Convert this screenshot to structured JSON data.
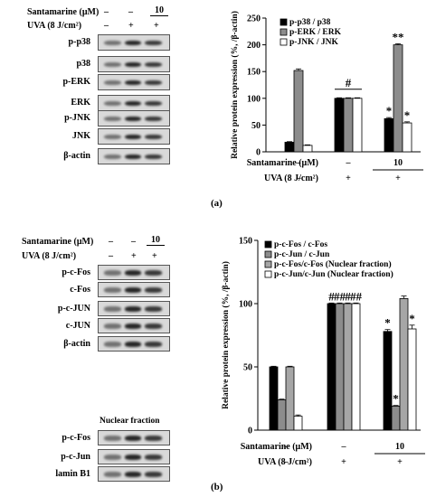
{
  "panel_a": {
    "letter": "(a)",
    "conditions": {
      "santamarine_label": "Santamarine (μM)",
      "uva_label": "UVA (8 J/cm²)",
      "santamarine_values": [
        "–",
        "–",
        "10"
      ],
      "uva_values": [
        "–",
        "+",
        "+"
      ]
    },
    "blot_labels": [
      "p-p38",
      "p38",
      "p-ERK",
      "ERK",
      "p-JNK",
      "JNK",
      "β-actin"
    ]
  },
  "panel_b": {
    "letter": "(b)",
    "conditions": {
      "santamarine_label": "Santamarine (μM)",
      "uva_label": "UVA (8 J/cm²)",
      "santamarine_values": [
        "–",
        "–",
        "10"
      ],
      "uva_values": [
        "–",
        "+",
        "+"
      ]
    },
    "blot_labels_top": [
      "p-c-Fos",
      "c-Fos",
      "p-c-JUN",
      "c-JUN",
      "β-actin"
    ],
    "nuclear_title": "Nuclear fraction",
    "blot_labels_nuclear": [
      "p-c-Fos",
      "p-c-Jun",
      "lamin B1"
    ]
  },
  "chart_data": [
    {
      "type": "bar",
      "ylabel": "Relative protein expression (%, /β-actin)",
      "ylim": [
        0,
        250
      ],
      "yticks": [
        0,
        50,
        100,
        150,
        200,
        250
      ],
      "groups": 3,
      "santamarine_label": "Santamarine (μM)",
      "uva_label": "UVA (8 J/cm²)",
      "santamarine_values": [
        "–",
        "–",
        "10"
      ],
      "uva_values": [
        "–",
        "+",
        "+"
      ],
      "legend_position": "top-left",
      "series": [
        {
          "name": "p-p38 / p38",
          "color": "#000000",
          "values": [
            18,
            100,
            62
          ],
          "errors": [
            1,
            1,
            2
          ],
          "marks": [
            "",
            "",
            "*"
          ]
        },
        {
          "name": "p-ERK / ERK",
          "color": "#8c8c8c",
          "values": [
            152,
            100,
            200
          ],
          "errors": [
            3,
            1,
            2
          ],
          "marks": [
            "",
            "",
            "**"
          ]
        },
        {
          "name": "p-JNK / JNK",
          "color": "#ffffff",
          "values": [
            12,
            100,
            54
          ],
          "errors": [
            1,
            1,
            2
          ],
          "marks": [
            "",
            "",
            "*"
          ]
        }
      ],
      "group_marks": [
        "",
        "#",
        ""
      ]
    },
    {
      "type": "bar",
      "ylabel": "Relative protein expression (%, /β-actin)",
      "ylim": [
        0,
        150
      ],
      "yticks": [
        0,
        50,
        100,
        150
      ],
      "groups": 3,
      "santamarine_label": "Santamarine (μM)",
      "uva_label": "UVA (8 J/cm²)",
      "santamarine_values": [
        "–",
        "–",
        "10"
      ],
      "uva_values": [
        "–",
        "+",
        "+"
      ],
      "legend_position": "top-left",
      "series": [
        {
          "name": "p-c-Fos / c-Fos",
          "color": "#000000",
          "values": [
            50,
            100,
            78
          ],
          "errors": [
            0.5,
            0.5,
            1.5
          ],
          "marks": [
            "",
            "#",
            "*"
          ]
        },
        {
          "name": "p-c-Jun / c-Jun",
          "color": "#8c8c8c",
          "values": [
            24,
            100,
            19
          ],
          "errors": [
            0.5,
            0.5,
            0.5
          ],
          "marks": [
            "",
            "##",
            "***"
          ]
        },
        {
          "name": "p-c-Fos/c-Fos (Nuclear fraction)",
          "color": "#a6a6a6",
          "values": [
            50,
            100,
            104
          ],
          "errors": [
            0.5,
            0.5,
            2
          ],
          "marks": [
            "",
            "#",
            ""
          ]
        },
        {
          "name": "p-c-Jun/c-Jun (Nuclear fraction)",
          "color": "#ffffff",
          "values": [
            11,
            100,
            80
          ],
          "errors": [
            1,
            0.5,
            3
          ],
          "marks": [
            "",
            "##",
            "*"
          ]
        }
      ]
    }
  ]
}
